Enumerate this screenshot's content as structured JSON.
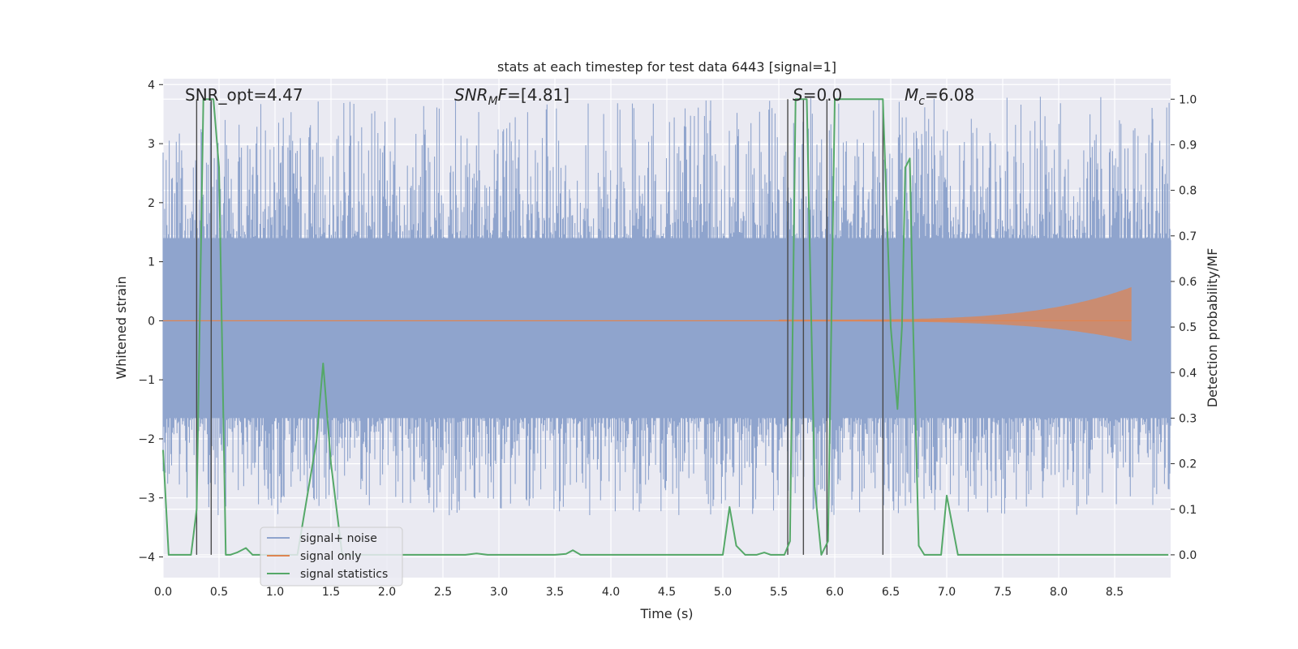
{
  "chart_data": {
    "type": "line",
    "title": "stats at each timestep for test data 6443 [signal=1]",
    "xlabel": "Time (s)",
    "ylabel": "Whitened strain",
    "y2label": "Detection probability/MF",
    "xlim": [
      0,
      9.0
    ],
    "ylim": [
      -4.35,
      4.1
    ],
    "y2lim": [
      -0.05,
      1.045
    ],
    "xticks": [
      0.0,
      0.5,
      1.0,
      1.5,
      2.0,
      2.5,
      3.0,
      3.5,
      4.0,
      4.5,
      5.0,
      5.5,
      6.0,
      6.5,
      7.0,
      7.5,
      8.0,
      8.5
    ],
    "xtick_labels": [
      "0.0",
      "0.5",
      "1.0",
      "1.5",
      "2.0",
      "2.5",
      "3.0",
      "3.5",
      "4.0",
      "4.5",
      "5.0",
      "5.5",
      "6.0",
      "6.5",
      "7.0",
      "7.5",
      "8.0",
      "8.5"
    ],
    "yticks": [
      4,
      3,
      2,
      1,
      0,
      -1,
      -2,
      -3,
      -4
    ],
    "ytick_labels": [
      "4",
      "3",
      "2",
      "1",
      "0",
      "−1",
      "−2",
      "−3",
      "−4"
    ],
    "y2ticks": [
      1.0,
      0.9,
      0.8,
      0.7,
      0.6,
      0.5,
      0.4,
      0.3,
      0.2,
      0.1,
      0.0
    ],
    "y2tick_labels": [
      "1.0",
      "0.9",
      "0.8",
      "0.7",
      "0.6",
      "0.5",
      "0.4",
      "0.3",
      "0.2",
      "0.1",
      "0.0"
    ],
    "grid": true,
    "legend_position": "lower-left",
    "annotations": {
      "snr_opt": "SNR_opt=4.47",
      "snr_mf": "SNR",
      "snr_mf_sub": "M",
      "snr_mf_rest": "F",
      "snr_mf_val": "=[4.81]",
      "s_label": "S",
      "s_val": "=0.0",
      "mc_label": "M",
      "mc_sub": "c",
      "mc_val": "=6.08"
    },
    "series": [
      {
        "name": "signal+ noise",
        "color": "#8fa4cd",
        "description_ref": "noise",
        "band_core": [
          -1.65,
          1.4
        ],
        "spike_range": [
          -3.1,
          3.8
        ],
        "duration": 9.0
      },
      {
        "name": "signal only",
        "color": "#dd8452",
        "chirp_start": 5.5,
        "chirp_end": 8.65,
        "peak_amplitude": 0.55
      },
      {
        "name": "signal statistics",
        "color": "#55a868",
        "axis": "right",
        "x": [
          0.0,
          0.05,
          0.25,
          0.3,
          0.36,
          0.4,
          0.45,
          0.5,
          0.56,
          0.6,
          0.66,
          0.74,
          0.8,
          1.0,
          1.2,
          1.37,
          1.43,
          1.5,
          1.6,
          1.7,
          1.8,
          2.0,
          2.5,
          2.7,
          2.8,
          2.9,
          3.0,
          3.2,
          3.5,
          3.6,
          3.66,
          3.73,
          3.8,
          4.0,
          4.5,
          4.9,
          5.0,
          5.06,
          5.12,
          5.2,
          5.3,
          5.37,
          5.43,
          5.5,
          5.55,
          5.6,
          5.65,
          5.7,
          5.75,
          5.82,
          5.88,
          5.94,
          6.0,
          6.05,
          6.2,
          6.43,
          6.5,
          6.56,
          6.6,
          6.63,
          6.67,
          6.7,
          6.75,
          6.8,
          6.85,
          6.95,
          7.0,
          7.1,
          7.15,
          7.3,
          7.5,
          8.0,
          8.5,
          8.98
        ],
        "y": [
          0.23,
          0.0,
          0.0,
          0.1,
          1.0,
          1.0,
          1.0,
          0.85,
          0.0,
          0.0,
          0.005,
          0.015,
          0.0,
          0.0,
          0.0,
          0.25,
          0.42,
          0.2,
          0.0,
          0.0,
          0.0,
          0.0,
          0.0,
          0.0,
          0.003,
          0.0,
          0.0,
          0.0,
          0.0,
          0.002,
          0.01,
          0.0,
          0.0,
          0.0,
          0.0,
          0.0,
          0.0,
          0.105,
          0.02,
          0.0,
          0.0,
          0.005,
          0.0,
          0.0,
          0.0,
          0.03,
          1.0,
          1.0,
          1.0,
          0.15,
          0.0,
          0.03,
          1.0,
          1.0,
          1.0,
          1.0,
          0.5,
          0.32,
          0.5,
          0.85,
          0.87,
          0.5,
          0.02,
          0.0,
          0.0,
          0.0,
          0.13,
          0.0,
          0.0,
          0.0,
          0.0,
          0.0,
          0.0,
          0.0
        ]
      }
    ],
    "vertical_markers": [
      0.3,
      0.43,
      5.58,
      5.72,
      5.93,
      6.43
    ]
  },
  "legend": {
    "items": [
      {
        "label": "signal+ noise",
        "color": "#8fa4cd"
      },
      {
        "label": "signal only",
        "color": "#dd8452"
      },
      {
        "label": "signal statistics",
        "color": "#55a868"
      }
    ]
  },
  "colors": {
    "plot_bg": "#eaeaf2",
    "grid": "#ffffff",
    "marker": "#4a4a4a"
  }
}
